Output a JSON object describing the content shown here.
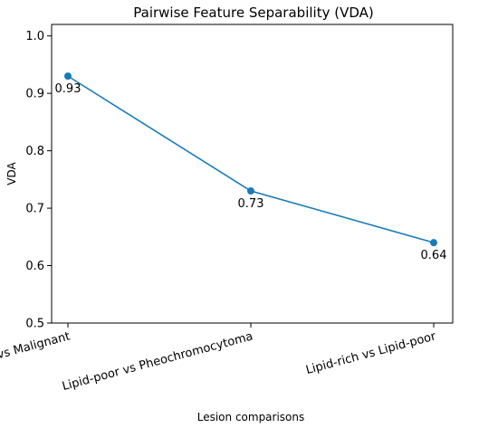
{
  "chart_data": {
    "type": "line",
    "title": "Pairwise Feature Separability (VDA)",
    "xlabel": "Lesion comparisons",
    "ylabel": "VDA",
    "categories": [
      "Lipid-rich vs Malignant",
      "Lipid-poor vs Pheochromocytoma",
      "Lipid-rich vs Lipid-poor"
    ],
    "values": [
      0.93,
      0.73,
      0.64
    ],
    "data_labels": [
      "0.93",
      "0.73",
      "0.64"
    ],
    "ylim": [
      0.5,
      1.02
    ],
    "yticks": [
      0.5,
      0.6,
      0.7,
      0.8,
      0.9,
      1.0
    ],
    "ytick_labels": [
      "0.5",
      "0.6",
      "0.7",
      "0.8",
      "0.9",
      "1.0"
    ],
    "grid": false,
    "legend": "none",
    "line_color": "#1a7bb5",
    "marker_color": "#1a7bb5"
  }
}
